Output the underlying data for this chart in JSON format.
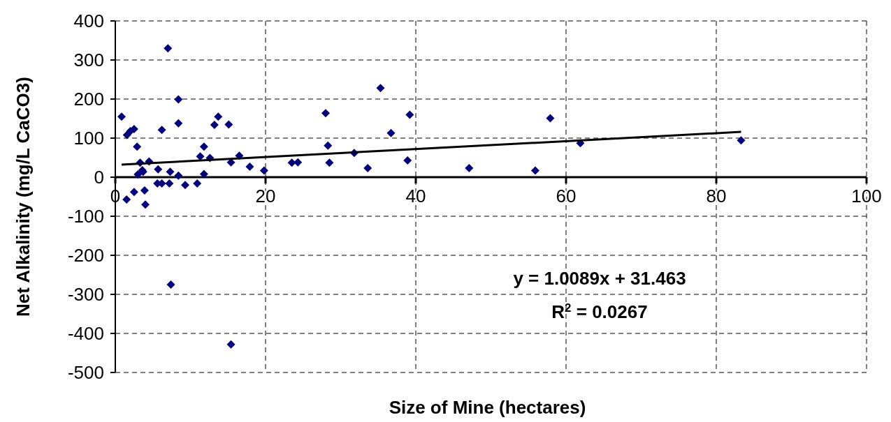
{
  "chart_data": {
    "type": "scatter",
    "xlabel": "Size of Mine (hectares)",
    "ylabel": "Net Alkalinity (mg/L CaCO3)",
    "xlim": [
      0,
      100
    ],
    "xticks": [
      0,
      20,
      40,
      60,
      80,
      100
    ],
    "ylim": [
      -500,
      400
    ],
    "yticks": [
      -500,
      -400,
      -300,
      -200,
      -100,
      0,
      100,
      200,
      300,
      400
    ],
    "grid": true,
    "marker": "diamond",
    "annotations": [
      "y = 1.0089x + 31.463",
      "R$^{2}$ = 0.0267"
    ],
    "series": [
      {
        "color": "#000080",
        "x": [
          0.84,
          1.55,
          2.0,
          2.5,
          7.0,
          8.4,
          8.4,
          6.2,
          2.9,
          3.3,
          3.0,
          3.7,
          3.6,
          4.5,
          5.7,
          5.6,
          6.2,
          7.2,
          7.3,
          8.4,
          9.3,
          10.9,
          11.3,
          11.8,
          11.8,
          12.6,
          13.2,
          13.7,
          15.1,
          15.4,
          16.5,
          17.9,
          19.8,
          1.5,
          2.5,
          3.9,
          4.0,
          7.4,
          15.4,
          23.5,
          24.3,
          28.0,
          28.3,
          28.5,
          31.8,
          33.6,
          35.3,
          36.7,
          38.9,
          39.2,
          47.1,
          55.9,
          57.9,
          61.9,
          83.3
        ],
        "values": [
          155,
          108,
          118,
          123,
          330,
          199,
          138,
          121,
          78,
          37,
          7,
          14,
          18,
          40,
          20,
          -16,
          -16,
          -16,
          14,
          4,
          -20,
          -16,
          53,
          78,
          8,
          49,
          134,
          155,
          135,
          38,
          55,
          27,
          17,
          -57,
          -38,
          -34,
          -70,
          -275,
          -428,
          37,
          38,
          164,
          81,
          37,
          62,
          23,
          228,
          113,
          43,
          160,
          23,
          17,
          151,
          87,
          94
        ]
      },
      {
        "type": "line",
        "color": "#000000",
        "marker": "none",
        "x": [
          0.84,
          83.3
        ],
        "values": [
          32,
          116
        ]
      }
    ]
  }
}
